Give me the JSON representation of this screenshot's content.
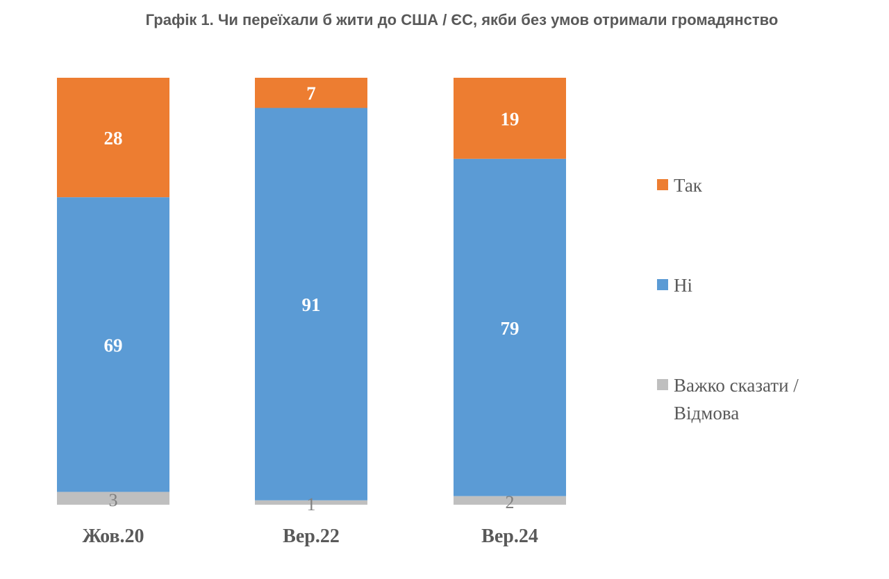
{
  "chart_data": {
    "type": "bar",
    "stacked": true,
    "title": "Графік 1. Чи переїхали б жити до США / ЄС, якби без умов отримали громадянство",
    "categories": [
      "Жов.20",
      "Вер.22",
      "Вер.24"
    ],
    "series": [
      {
        "name": "Так",
        "color": "#ED7D31",
        "values": [
          28,
          7,
          19
        ]
      },
      {
        "name": "Ні",
        "color": "#5B9BD5",
        "values": [
          69,
          91,
          79
        ]
      },
      {
        "name": "Важко сказати / Відмова",
        "color": "#BFBFBF",
        "values": [
          3,
          1,
          2
        ]
      }
    ],
    "legend_position": "right",
    "grid": false,
    "value_labels": true
  }
}
